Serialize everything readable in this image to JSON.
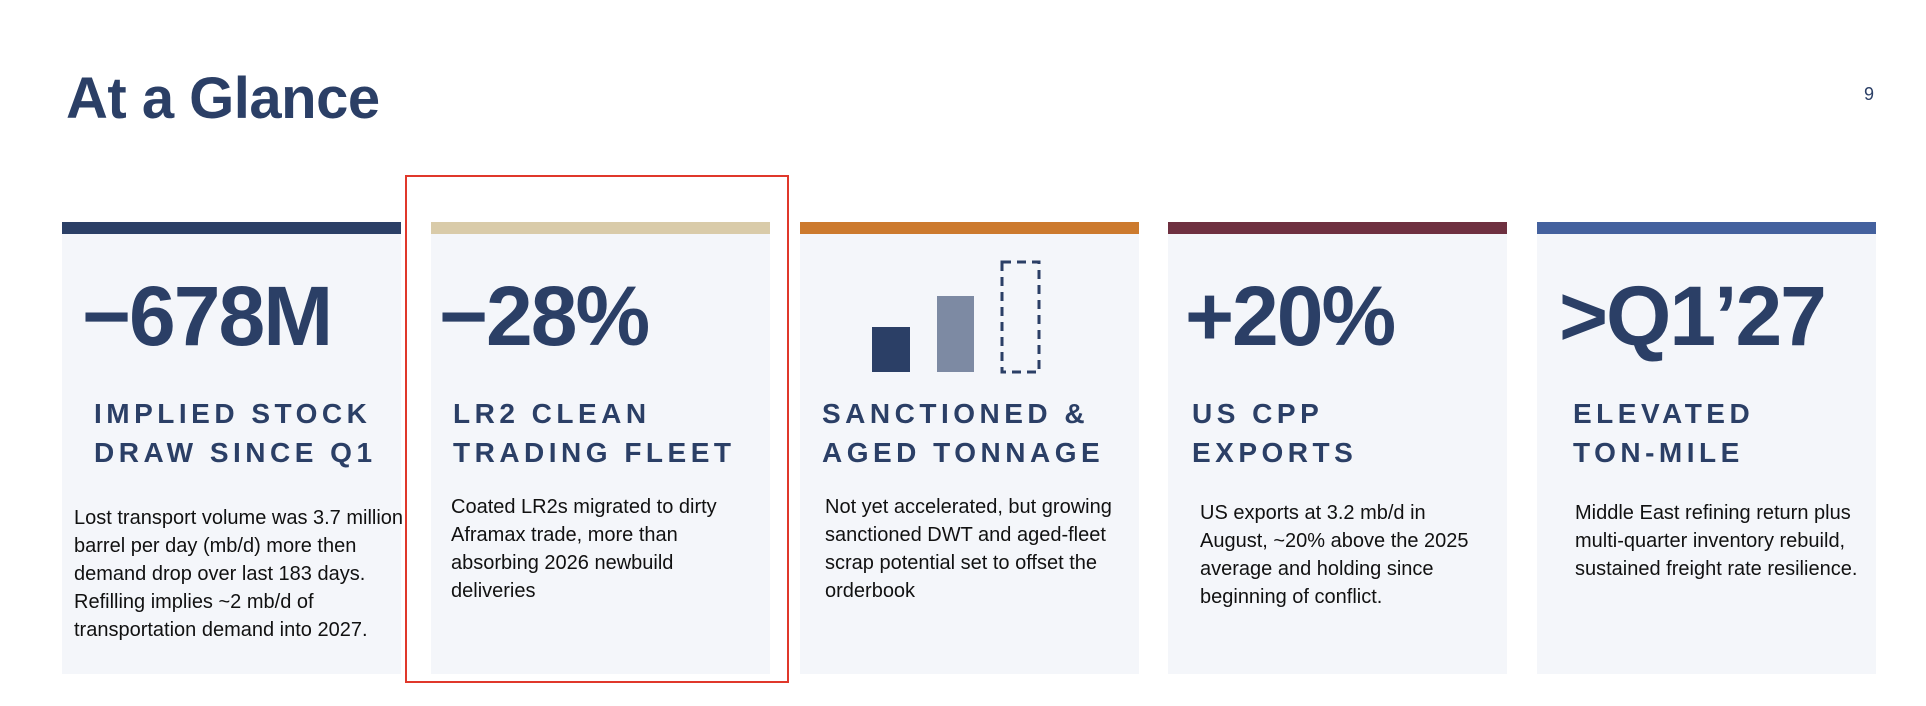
{
  "page": {
    "title": "At a Glance",
    "page_number": "9"
  },
  "cards": [
    {
      "stat": "−678M",
      "heading_line1": "IMPLIED STOCK",
      "heading_line2": "DRAW SINCE Q1",
      "body": "Lost transport volume was 3.7 million barrel per day (mb/d) more then demand drop over last 183 days. Refilling implies ~2 mb/d of transportation demand into 2027.",
      "accent_color": "#2b3f66"
    },
    {
      "stat": "−28%",
      "heading_line1": "LR2 CLEAN",
      "heading_line2": "TRADING FLEET",
      "body": "Coated LR2s migrated to dirty Aframax trade, more than absorbing 2026 newbuild deliveries",
      "accent_color": "#d9cba9"
    },
    {
      "icon": "bar-chart-rising-icon",
      "heading_line1": "SANCTIONED &",
      "heading_line2": "AGED TONNAGE",
      "body": "Not yet accelerated, but growing sanctioned DWT and aged-fleet scrap potential set to offset the orderbook",
      "accent_color": "#cc7a2e"
    },
    {
      "stat": "+20%",
      "heading_line1": "US CPP",
      "heading_line2": "EXPORTS",
      "body": "US exports at 3.2 mb/d in August, ~20% above the 2025 average and holding since beginning of conflict.",
      "accent_color": "#6e3040"
    },
    {
      "stat": ">Q1’27",
      "heading_line1": "ELEVATED",
      "heading_line2": "TON-MILE",
      "body": "Middle East refining return plus multi-quarter inventory rebuild, sustained freight rate resilience.",
      "accent_color": "#44619e"
    }
  ],
  "colors": {
    "title": "#2b3f66",
    "card_background": "#f4f6fa",
    "highlight_border": "#e0382b"
  }
}
